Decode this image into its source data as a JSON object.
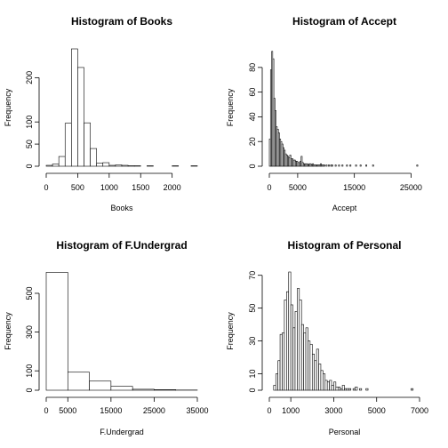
{
  "chart_data": [
    {
      "type": "histogram",
      "title": "Histogram of Books",
      "xlabel": "Books",
      "ylabel": "Frequency",
      "xlim": [
        0,
        2400
      ],
      "ylim": [
        0,
        265
      ],
      "xticks": [
        0,
        500,
        1000,
        1500,
        2000
      ],
      "yticks": [
        0,
        50,
        100,
        200
      ],
      "bin_width": 100,
      "bins_start": 0,
      "counts": [
        2,
        5,
        22,
        97,
        265,
        223,
        98,
        40,
        7,
        8,
        2,
        3,
        2,
        1,
        1,
        0,
        1,
        0,
        0,
        0,
        1,
        0,
        0,
        1
      ]
    },
    {
      "type": "histogram",
      "title": "Histogram of Accept",
      "xlabel": "Accept",
      "ylabel": "Frequency",
      "xlim": [
        0,
        26500
      ],
      "ylim": [
        0,
        95
      ],
      "xticks": [
        0,
        5000,
        15000,
        25000
      ],
      "yticks": [
        0,
        20,
        40,
        60,
        80
      ],
      "bin_width": 200,
      "bins_start": 0,
      "counts": [
        22,
        78,
        93,
        87,
        55,
        45,
        32,
        30,
        27,
        22,
        20,
        18,
        15,
        13,
        10,
        9,
        8,
        7,
        9,
        6,
        6,
        5,
        5,
        4,
        4,
        3,
        3,
        4,
        8,
        3,
        2,
        2,
        2,
        2,
        1,
        2,
        2,
        1,
        2,
        1,
        1,
        1,
        1,
        1,
        1,
        2,
        1,
        1,
        1,
        0,
        1,
        0,
        1,
        0,
        1,
        1,
        0,
        0,
        1,
        0,
        0,
        1,
        0,
        0,
        1,
        0,
        0,
        0,
        1,
        0,
        0,
        1,
        0,
        0,
        0,
        0,
        1,
        0,
        0,
        0,
        1,
        0,
        0,
        0,
        0,
        1,
        0,
        0,
        0,
        0,
        0,
        1,
        0,
        0,
        0,
        0,
        0,
        0,
        0,
        0,
        0,
        0,
        0,
        0,
        0,
        0,
        0,
        0,
        0,
        0,
        0,
        0,
        0,
        0,
        0,
        0,
        0,
        0,
        0,
        0,
        0,
        0,
        0,
        0,
        0,
        0,
        0,
        0,
        0,
        0,
        1
      ]
    },
    {
      "type": "histogram",
      "title": "Histogram of F.Undergrad",
      "xlabel": "F.Undergrad",
      "ylabel": "Frequency",
      "xlim": [
        0,
        35000
      ],
      "ylim": [
        0,
        610
      ],
      "xticks": [
        0,
        5000,
        15000,
        25000,
        35000
      ],
      "yticks": [
        0,
        100,
        300,
        500
      ],
      "bin_width": 5000,
      "bins_start": 0,
      "counts": [
        608,
        93,
        47,
        20,
        5,
        3,
        1
      ]
    },
    {
      "type": "histogram",
      "title": "Histogram of Personal",
      "xlabel": "Personal",
      "ylabel": "Frequency",
      "xlim": [
        0,
        7000
      ],
      "ylim": [
        0,
        72
      ],
      "xticks": [
        0,
        1000,
        3000,
        5000,
        7000
      ],
      "yticks": [
        0,
        10,
        30,
        50,
        70
      ],
      "bin_width": 100,
      "bins_start": 200,
      "counts": [
        3,
        10,
        18,
        34,
        35,
        55,
        60,
        72,
        52,
        38,
        48,
        62,
        55,
        40,
        35,
        38,
        30,
        28,
        22,
        18,
        25,
        16,
        12,
        10,
        6,
        5,
        6,
        3,
        5,
        2,
        2,
        1,
        3,
        1,
        1,
        1,
        0,
        1,
        2,
        0,
        1,
        0,
        0,
        1,
        0,
        0,
        0,
        0,
        0,
        0,
        0,
        0,
        0,
        0,
        0,
        0,
        0,
        0,
        0,
        0,
        0,
        0,
        0,
        0,
        1
      ]
    }
  ]
}
